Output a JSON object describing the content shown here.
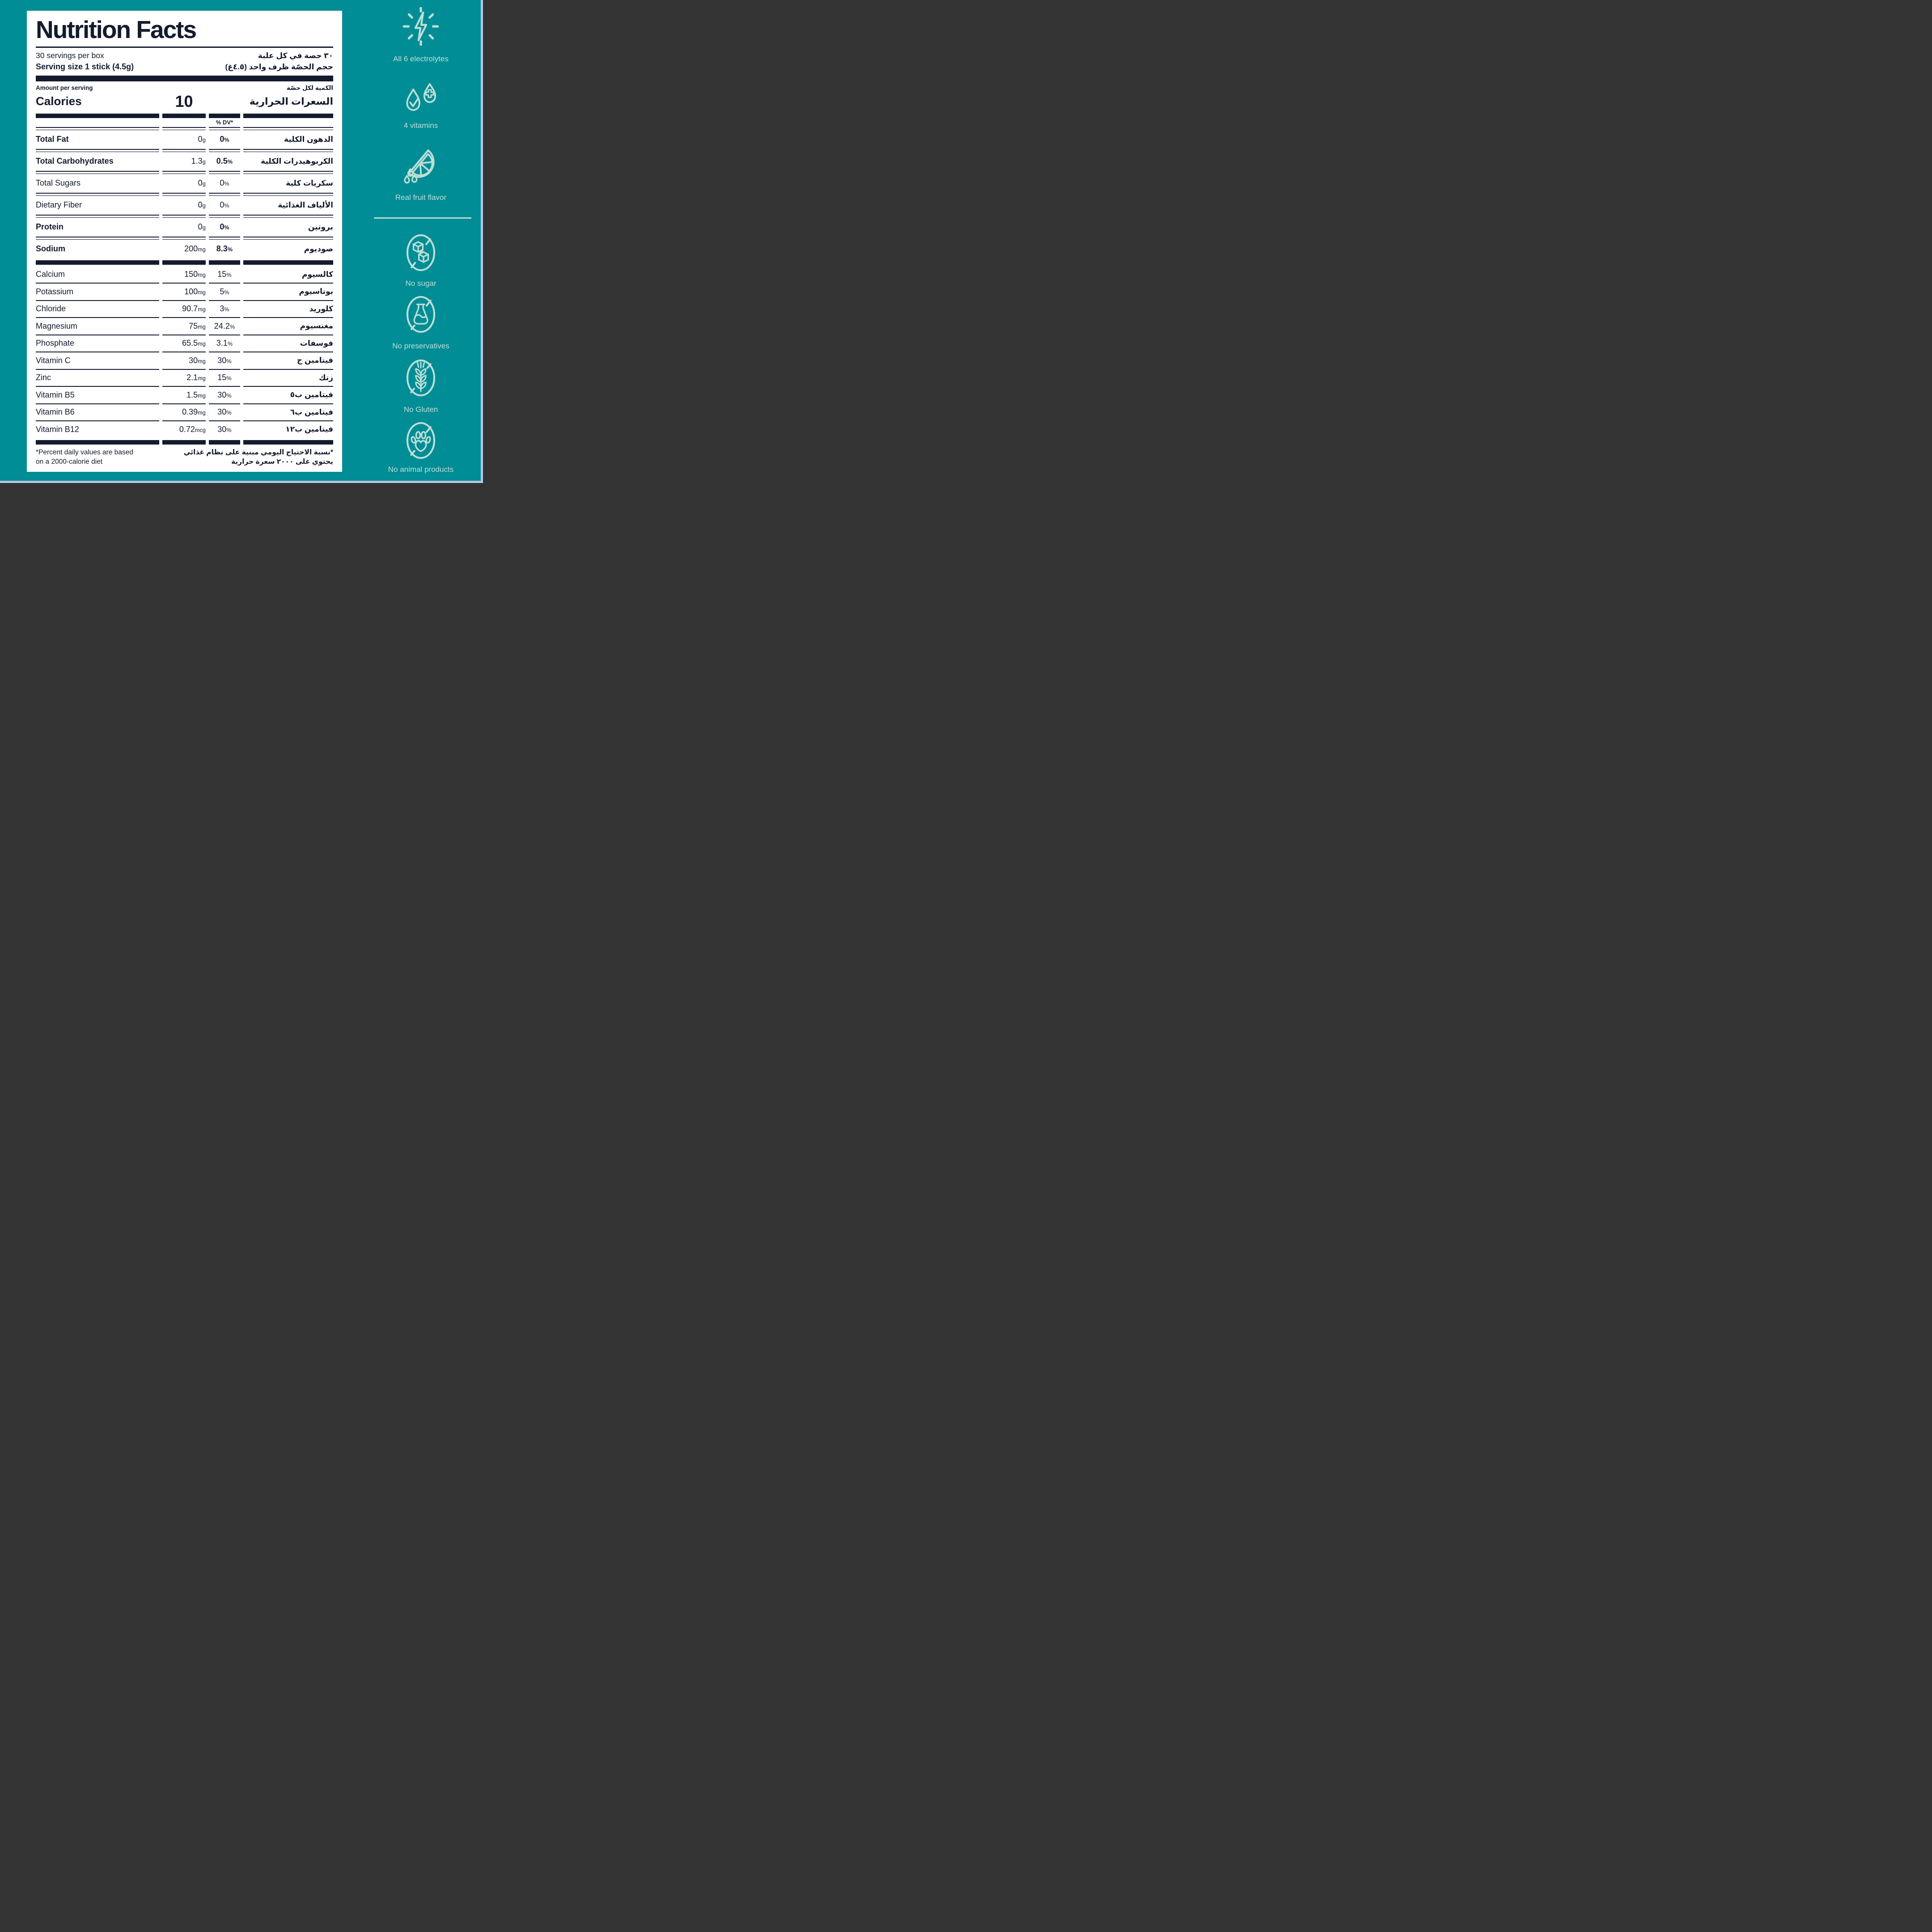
{
  "colors": {
    "background": "#008D95",
    "ink": "#141B2E",
    "panel": "#FFFFFF",
    "mint": "#BDDED6",
    "edge_strip": "#B6C6E2"
  },
  "label": {
    "title": "Nutrition Facts",
    "servings_per_box_en": "30 servings per box",
    "servings_per_box_ar": "٣٠ حصة في كل علبة",
    "serving_size_en": "Serving size 1 stick (4.5g)",
    "serving_size_ar": "حجم الحصّة  ظرف واحد (٤.٥غ)",
    "amount_per_serving_en": "Amount per serving",
    "amount_per_serving_ar": "الكمية لكل حصّة",
    "calories_en": "Calories",
    "calories_value": "10",
    "calories_ar": "السعرات الحرارية",
    "dv_header": "% DV*",
    "macro_rows": [
      {
        "name_en": "Total Fat",
        "amount": "0",
        "unit": "g",
        "dv": "0%",
        "name_ar": "الدهون الكلية",
        "bold": true
      },
      {
        "name_en": "Total Carbohydrates",
        "amount": "1.3",
        "unit": "g",
        "dv": "0.5%",
        "name_ar": "الكربوهيدرات الكلية",
        "bold": true
      },
      {
        "name_en": "Total Sugars",
        "amount": "0",
        "unit": "g",
        "dv": "0%",
        "name_ar": "سكريات كلية",
        "bold": false
      },
      {
        "name_en": "Dietary Fiber",
        "amount": "0",
        "unit": "g",
        "dv": "0%",
        "name_ar": "الألياف الغذائية",
        "bold": false
      },
      {
        "name_en": "Protein",
        "amount": "0",
        "unit": "g",
        "dv": "0%",
        "name_ar": "بروتين",
        "bold": true
      },
      {
        "name_en": "Sodium",
        "amount": "200",
        "unit": "mg",
        "dv": "8.3%",
        "name_ar": "صوديوم",
        "bold": true
      }
    ],
    "micro_rows": [
      {
        "name_en": "Calcium",
        "amount": "150",
        "unit": "mg",
        "dv": "15%",
        "name_ar": "كالسيوم"
      },
      {
        "name_en": "Potassium",
        "amount": "100",
        "unit": "mg",
        "dv": "5%",
        "name_ar": "بوتاسيوم"
      },
      {
        "name_en": "Chloride",
        "amount": "90.7",
        "unit": "mg",
        "dv": "3%",
        "name_ar": "كلوريد"
      },
      {
        "name_en": "Magnesium",
        "amount": "75",
        "unit": "mg",
        "dv": "24.2%",
        "name_ar": "مغنسيوم"
      },
      {
        "name_en": "Phosphate",
        "amount": "65.5",
        "unit": "mg",
        "dv": "3.1%",
        "name_ar": "فوسفات"
      },
      {
        "name_en": "Vitamin C",
        "amount": "30",
        "unit": "mg",
        "dv": "30%",
        "name_ar": "فيتامين ج"
      },
      {
        "name_en": "Zinc",
        "amount": "2.1",
        "unit": "mg",
        "dv": "15%",
        "name_ar": "زنك"
      },
      {
        "name_en": "Vitamin B5",
        "amount": "1.5",
        "unit": "mg",
        "dv": "30%",
        "name_ar": "فيتامين ب٥"
      },
      {
        "name_en": "Vitamin B6",
        "amount": "0.39",
        "unit": "mg",
        "dv": "30%",
        "name_ar": "فيتامين ب٦"
      },
      {
        "name_en": "Vitamin B12",
        "amount": "0.72",
        "unit": "mcg",
        "dv": "30%",
        "name_ar": "فيتامين ب١٢"
      }
    ],
    "footnote_en": [
      "*Percent daily values are based",
      "on a 2000-calorie diet"
    ],
    "footnote_ar": [
      "*نسبة الاحتياج اليومي مبنية على نظام غذائي",
      "يحتوي على ٢٠٠٠ سعرة حرارية"
    ]
  },
  "sidebar": {
    "items": [
      {
        "icon": "lightning-icon",
        "label": "All 6 electrolytes"
      },
      {
        "icon": "droplets-icon",
        "label": "4 vitamins"
      },
      {
        "icon": "citrus-icon",
        "label": "Real fruit flavor"
      },
      {
        "icon": "no-sugar-icon",
        "label": "No sugar"
      },
      {
        "icon": "no-preservatives-icon",
        "label": "No preservatives"
      },
      {
        "icon": "no-gluten-icon",
        "label": "No Gluten"
      },
      {
        "icon": "no-animal-icon",
        "label": "No animal products"
      }
    ]
  }
}
